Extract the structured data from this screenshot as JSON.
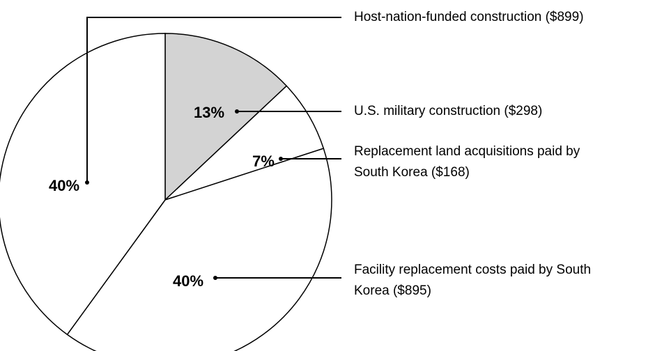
{
  "chart_data": {
    "type": "pie",
    "categories": [
      "U.S. military construction ($298)",
      "Replacement land acquisitions paid by South Korea ($168)",
      "Facility replacement costs paid by South Korea ($895)",
      "Host-nation-funded construction ($899)"
    ],
    "values": [
      13,
      7,
      40,
      40
    ],
    "value_labels": [
      "13%",
      "7%",
      "40%",
      "40%"
    ],
    "colors": [
      "#d3d3d3",
      "#ffffff",
      "#ffffff",
      "#ffffff"
    ]
  }
}
